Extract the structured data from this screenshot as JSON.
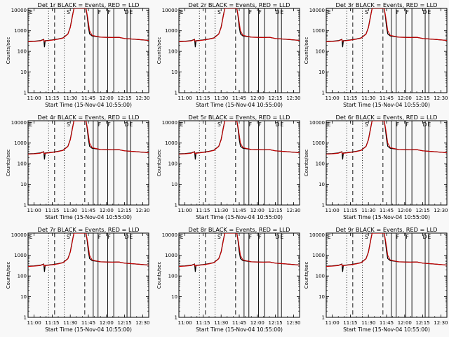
{
  "chart_data": [
    {
      "type": "line",
      "title": "Det 1r BLACK = Events, RED = LLD",
      "ylabel": "Counts/sec",
      "xlabel": "Start Time (15-Nov-04 10:55:00)",
      "x_ticks": [
        "11:00",
        "11:15",
        "11:30",
        "11:45",
        "12:00",
        "12:15",
        "12:30"
      ],
      "y_ticks": [
        "1",
        "10",
        "100",
        "1000",
        "10000"
      ],
      "yscale": "log",
      "ylim": [
        1,
        12000
      ],
      "xlim": [
        "10:55",
        "12:35"
      ]
    },
    {
      "type": "line",
      "title": "Det 2r BLACK = Events, RED = LLD",
      "ylabel": "Counts/sec",
      "xlabel": "Start Time (15-Nov-04 10:55:00)",
      "x_ticks": [
        "11:00",
        "11:15",
        "11:30",
        "11:45",
        "12:00",
        "12:15",
        "12:30"
      ],
      "y_ticks": [
        "1",
        "10",
        "100",
        "1000",
        "10000"
      ],
      "yscale": "log",
      "ylim": [
        1,
        12000
      ],
      "xlim": [
        "10:55",
        "12:35"
      ]
    },
    {
      "type": "line",
      "title": "Det 3r BLACK = Events, RED = LLD",
      "ylabel": "Counts/sec",
      "xlabel": "Start Time (15-Nov-04 10:55:00)",
      "x_ticks": [
        "11:00",
        "11:15",
        "11:30",
        "11:45",
        "12:00",
        "12:15",
        "12:30"
      ],
      "y_ticks": [
        "1",
        "10",
        "100",
        "1000",
        "10000"
      ],
      "yscale": "log",
      "ylim": [
        1,
        12000
      ],
      "xlim": [
        "10:55",
        "12:35"
      ]
    },
    {
      "type": "line",
      "title": "Det 4r BLACK = Events, RED = LLD",
      "ylabel": "Counts/sec",
      "xlabel": "Start Time (15-Nov-04 10:55:00)",
      "x_ticks": [
        "11:00",
        "11:15",
        "11:30",
        "11:45",
        "12:00",
        "12:15",
        "12:30"
      ],
      "y_ticks": [
        "1",
        "10",
        "100",
        "1000",
        "10000"
      ],
      "yscale": "log",
      "ylim": [
        1,
        12000
      ],
      "xlim": [
        "10:55",
        "12:35"
      ]
    },
    {
      "type": "line",
      "title": "Det 5r BLACK = Events, RED = LLD",
      "ylabel": "Counts/sec",
      "xlabel": "Start Time (15-Nov-04 10:55:00)",
      "x_ticks": [
        "11:00",
        "11:15",
        "11:30",
        "11:45",
        "12:00",
        "12:15",
        "12:30"
      ],
      "y_ticks": [
        "1",
        "10",
        "100",
        "1000",
        "10000"
      ],
      "yscale": "log",
      "ylim": [
        1,
        12000
      ],
      "xlim": [
        "10:55",
        "12:35"
      ]
    },
    {
      "type": "line",
      "title": "Det 6r BLACK = Events, RED = LLD",
      "ylabel": "Counts/sec",
      "xlabel": "Start Time (15-Nov-04 10:55:00)",
      "x_ticks": [
        "11:00",
        "11:15",
        "11:30",
        "11:45",
        "12:00",
        "12:15",
        "12:30"
      ],
      "y_ticks": [
        "1",
        "10",
        "100",
        "1000",
        "10000"
      ],
      "yscale": "log",
      "ylim": [
        1,
        12000
      ],
      "xlim": [
        "10:55",
        "12:35"
      ]
    },
    {
      "type": "line",
      "title": "Det 7r BLACK = Events, RED = LLD",
      "ylabel": "Counts/sec",
      "xlabel": "Start Time (15-Nov-04 10:55:00)",
      "x_ticks": [
        "11:00",
        "11:15",
        "11:30",
        "11:45",
        "12:00",
        "12:15",
        "12:30"
      ],
      "y_ticks": [
        "1",
        "10",
        "100",
        "1000",
        "10000"
      ],
      "yscale": "log",
      "ylim": [
        1,
        12000
      ],
      "xlim": [
        "10:55",
        "12:35"
      ]
    },
    {
      "type": "line",
      "title": "Det 8r BLACK = Events, RED = LLD",
      "ylabel": "Counts/sec",
      "xlabel": "Start Time (15-Nov-04 10:55:00)",
      "x_ticks": [
        "11:00",
        "11:15",
        "11:30",
        "11:45",
        "12:00",
        "12:15",
        "12:30"
      ],
      "y_ticks": [
        "1",
        "10",
        "100",
        "1000",
        "10000"
      ],
      "yscale": "log",
      "ylim": [
        1,
        12000
      ],
      "xlim": [
        "10:55",
        "12:35"
      ]
    },
    {
      "type": "line",
      "title": "Det 9r BLACK = Events, RED = LLD",
      "ylabel": "Counts/sec",
      "xlabel": "Start Time (15-Nov-04 10:55:00)",
      "x_ticks": [
        "11:00",
        "11:15",
        "11:30",
        "11:45",
        "12:00",
        "12:15",
        "12:30"
      ],
      "y_ticks": [
        "1",
        "10",
        "100",
        "1000",
        "10000"
      ],
      "yscale": "log",
      "ylim": [
        1,
        12000
      ],
      "xlim": [
        "10:55",
        "12:35"
      ]
    }
  ],
  "shared": {
    "series": [
      {
        "name": "Events",
        "color": "#000000"
      },
      {
        "name": "LLD",
        "color": "#cc0000"
      }
    ],
    "profile": [
      {
        "t": 0,
        "events": 300,
        "lld": 290
      },
      {
        "t": 5,
        "events": 310,
        "lld": 300
      },
      {
        "t": 10,
        "events": 330,
        "lld": 320
      },
      {
        "t": 13,
        "events": 380,
        "lld": 370
      },
      {
        "t": 13.6,
        "events": 160,
        "lld": 300
      },
      {
        "t": 14.2,
        "events": 330,
        "lld": 320
      },
      {
        "t": 20,
        "events": 360,
        "lld": 350
      },
      {
        "t": 25,
        "events": 400,
        "lld": 390
      },
      {
        "t": 29,
        "events": 450,
        "lld": 440
      },
      {
        "t": 33,
        "events": 700,
        "lld": 680
      },
      {
        "t": 35,
        "events": 1500,
        "lld": 1400
      },
      {
        "t": 36.5,
        "events": 4500,
        "lld": 4000
      },
      {
        "t": 38,
        "events": 12000,
        "lld": 12000
      },
      {
        "t": 48,
        "events": 12000,
        "lld": 12000
      },
      {
        "t": 49,
        "events": 5000,
        "lld": 6000
      },
      {
        "t": 50,
        "events": 1500,
        "lld": 2500
      },
      {
        "t": 51,
        "events": 700,
        "lld": 1000
      },
      {
        "t": 53,
        "events": 560,
        "lld": 600
      },
      {
        "t": 60,
        "events": 490,
        "lld": 490
      },
      {
        "t": 70,
        "events": 470,
        "lld": 470
      },
      {
        "t": 75,
        "events": 480,
        "lld": 480
      },
      {
        "t": 80,
        "events": 420,
        "lld": 420
      },
      {
        "t": 90,
        "events": 380,
        "lld": 380
      },
      {
        "t": 100,
        "events": 340,
        "lld": 340
      }
    ],
    "markers": [
      {
        "t": 17,
        "style": "dotted"
      },
      {
        "t": 30,
        "style": "dotted"
      },
      {
        "t": 22,
        "style": "dashed"
      },
      {
        "t": 47,
        "style": "dashed"
      },
      {
        "t": 54,
        "style": "solid"
      },
      {
        "t": 58,
        "style": "solid"
      },
      {
        "t": 66,
        "style": "solid"
      },
      {
        "t": 71,
        "style": "solid"
      },
      {
        "t": 82,
        "style": "solid"
      },
      {
        "t": 85,
        "style": "solid"
      }
    ],
    "flag_labels": [
      {
        "t": 1,
        "text": "E"
      },
      {
        "t": 32,
        "text": "S"
      },
      {
        "t": 58,
        "text": "F"
      },
      {
        "t": 66,
        "text": "F"
      },
      {
        "t": 80,
        "text": "D"
      },
      {
        "t": 84,
        "text": "E"
      }
    ]
  }
}
